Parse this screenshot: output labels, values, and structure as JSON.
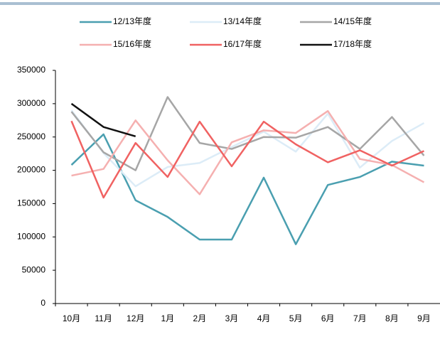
{
  "chart_data": {
    "type": "line",
    "categories": [
      "10月",
      "11月",
      "12月",
      "1月",
      "2月",
      "3月",
      "4月",
      "5月",
      "6月",
      "7月",
      "8月",
      "9月"
    ],
    "series": [
      {
        "name": "12/13年度",
        "color": "#4a9fb0",
        "values": [
          208000,
          254000,
          155000,
          130000,
          96000,
          96000,
          189000,
          89000,
          178000,
          190000,
          213000,
          207000
        ]
      },
      {
        "name": "13/14年度",
        "color": "#dcecf7",
        "values": [
          290000,
          226000,
          176000,
          205000,
          211000,
          235000,
          258000,
          228000,
          285000,
          204000,
          244000,
          271000
        ]
      },
      {
        "name": "14/15年度",
        "color": "#a6a6a6",
        "values": [
          288000,
          227000,
          200000,
          310000,
          241000,
          232000,
          250000,
          249000,
          265000,
          232000,
          280000,
          222000
        ]
      },
      {
        "name": "15/16年度",
        "color": "#f5b0b0",
        "values": [
          192000,
          202000,
          275000,
          215000,
          164000,
          242000,
          260000,
          256000,
          289000,
          217000,
          208000,
          182000
        ]
      },
      {
        "name": "16/17年度",
        "color": "#f06262",
        "values": [
          274000,
          159000,
          241000,
          190000,
          273000,
          206000,
          273000,
          239000,
          212000,
          230000,
          207000,
          229000
        ]
      },
      {
        "name": "17/18年度",
        "color": "#111111",
        "values": [
          300000,
          265000,
          251000,
          null,
          null,
          null,
          null,
          null,
          null,
          null,
          null,
          null
        ]
      }
    ],
    "ylim": [
      0,
      350000
    ],
    "yticks": [
      0,
      50000,
      100000,
      150000,
      200000,
      250000,
      300000,
      350000
    ],
    "grid": false
  }
}
